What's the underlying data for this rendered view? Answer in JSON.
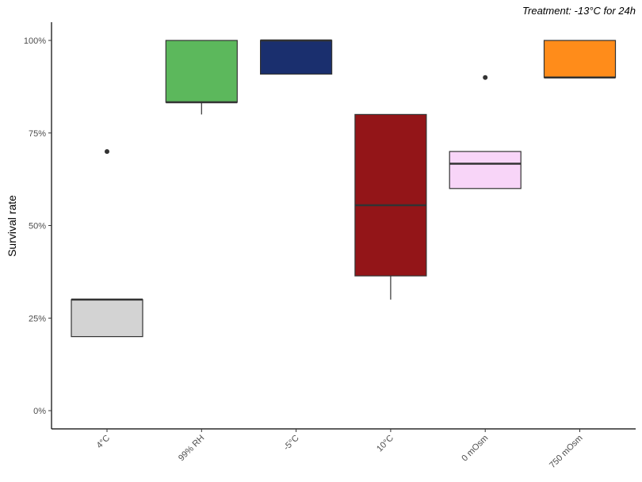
{
  "chart_data": {
    "type": "box",
    "annotation": "Treatment: -13°C for 24h",
    "xlabel": "",
    "ylabel": "Survival rate",
    "ylim": [
      0,
      100
    ],
    "yticks": [
      0,
      25,
      50,
      75,
      100
    ],
    "ytick_labels": [
      "0%",
      "25%",
      "50%",
      "75%",
      "100%"
    ],
    "grid": false,
    "categories": [
      "4°C",
      "99% RH",
      "-5°C",
      "10°C",
      "0 mOsm",
      "750 mOsm"
    ],
    "colors": [
      "#d3d3d3",
      "#5cb85c",
      "#1a2f6e",
      "#931518",
      "#f8d5f8",
      "#ff8c1a"
    ],
    "boxes": [
      {
        "whisker_low": 20,
        "q1": 20,
        "median": 30,
        "q3": 30,
        "whisker_high": 30,
        "outliers": [
          70
        ]
      },
      {
        "whisker_low": 80,
        "q1": 83.3,
        "median": 83.3,
        "q3": 100,
        "whisker_high": 100,
        "outliers": []
      },
      {
        "whisker_low": 90.9,
        "q1": 90.9,
        "median": 100,
        "q3": 100,
        "whisker_high": 100,
        "outliers": []
      },
      {
        "whisker_low": 30,
        "q1": 36.4,
        "median": 55.5,
        "q3": 80,
        "whisker_high": 80,
        "outliers": []
      },
      {
        "whisker_low": 60,
        "q1": 60,
        "median": 66.7,
        "q3": 70,
        "whisker_high": 70,
        "outliers": [
          90
        ]
      },
      {
        "whisker_low": 90,
        "q1": 90,
        "median": 90,
        "q3": 100,
        "whisker_high": 100,
        "outliers": []
      }
    ]
  }
}
